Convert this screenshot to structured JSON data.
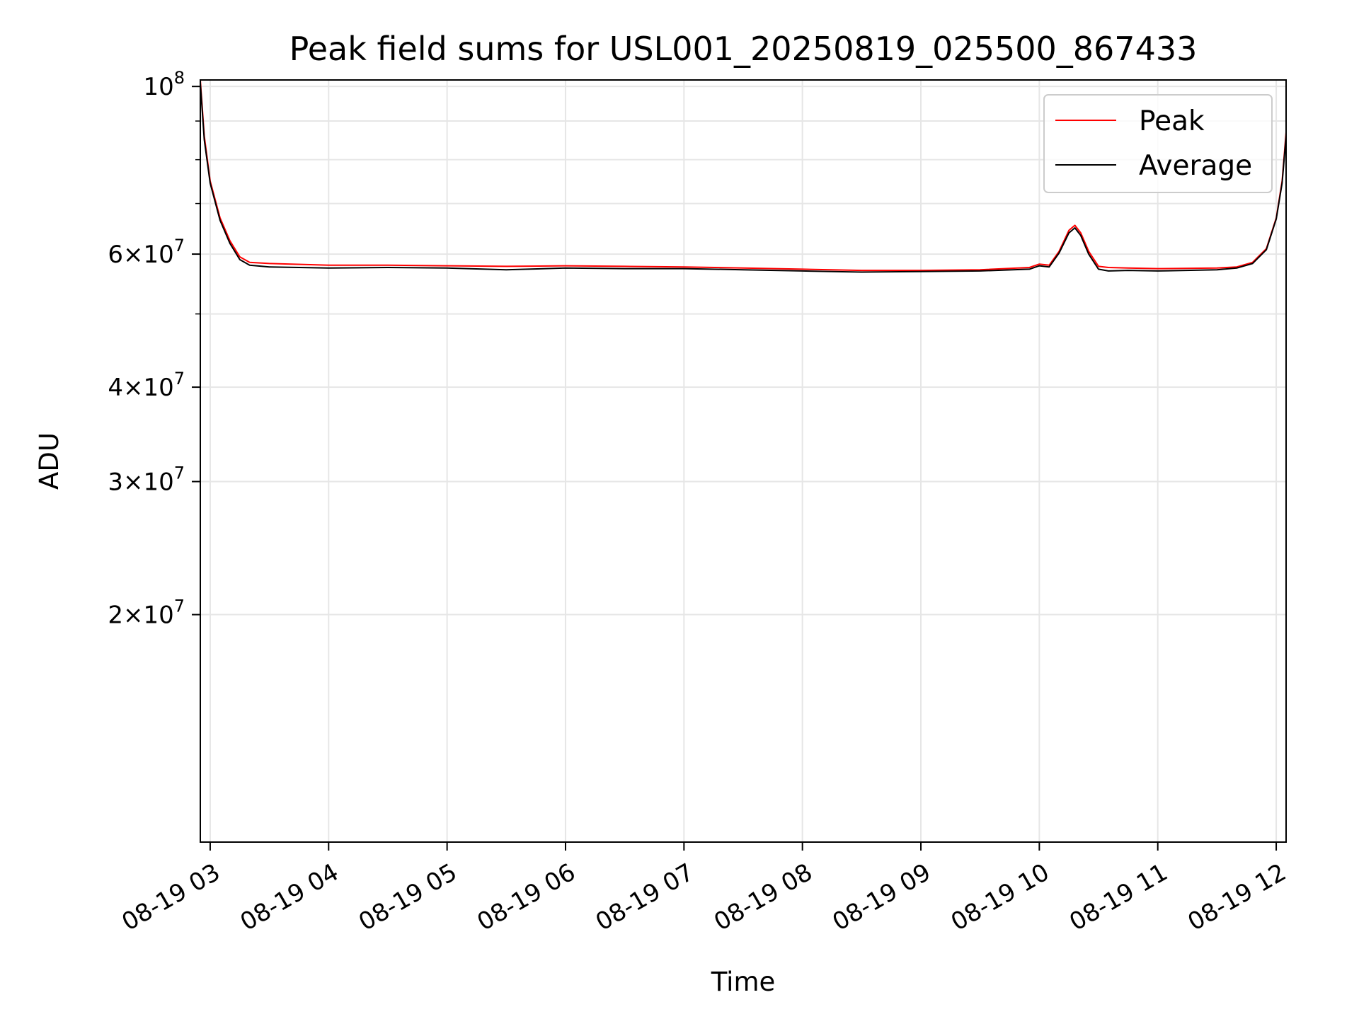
{
  "chart_data": {
    "type": "line",
    "title": "Peak field sums for USL001_20250819_025500_867433",
    "xlabel": "Time",
    "ylabel": "ADU",
    "yscale": "log",
    "ylim": [
      10000000,
      102000000
    ],
    "xlim": [
      "2025-08-19 02:55",
      "2025-08-19 12:05"
    ],
    "grid": true,
    "legend": {
      "position": "top-right"
    },
    "x_ticks": [
      {
        "t": "2025-08-19 03:00",
        "label": "08-19 03"
      },
      {
        "t": "2025-08-19 04:00",
        "label": "08-19 04"
      },
      {
        "t": "2025-08-19 05:00",
        "label": "08-19 05"
      },
      {
        "t": "2025-08-19 06:00",
        "label": "08-19 06"
      },
      {
        "t": "2025-08-19 07:00",
        "label": "08-19 07"
      },
      {
        "t": "2025-08-19 08:00",
        "label": "08-19 08"
      },
      {
        "t": "2025-08-19 09:00",
        "label": "08-19 09"
      },
      {
        "t": "2025-08-19 10:00",
        "label": "08-19 10"
      },
      {
        "t": "2025-08-19 11:00",
        "label": "08-19 11"
      },
      {
        "t": "2025-08-19 12:00",
        "label": "08-19 12"
      }
    ],
    "y_ticks": [
      {
        "value": 20000000,
        "mant": "2",
        "exp": "7"
      },
      {
        "value": 30000000,
        "mant": "3",
        "exp": "7"
      },
      {
        "value": 40000000,
        "mant": "4",
        "exp": "7"
      },
      {
        "value": 60000000,
        "mant": "6",
        "exp": "7"
      },
      {
        "value": 100000000,
        "mant": "",
        "exp": "8"
      }
    ],
    "y_minor_ticks": [
      50000000,
      70000000,
      80000000,
      90000000
    ],
    "series": [
      {
        "name": "Peak",
        "color": "#ff0000",
        "x": [
          "2025-08-19 02:55",
          "2025-08-19 02:57",
          "2025-08-19 03:00",
          "2025-08-19 03:05",
          "2025-08-19 03:10",
          "2025-08-19 03:15",
          "2025-08-19 03:20",
          "2025-08-19 03:30",
          "2025-08-19 04:00",
          "2025-08-19 04:30",
          "2025-08-19 05:00",
          "2025-08-19 05:30",
          "2025-08-19 06:00",
          "2025-08-19 06:30",
          "2025-08-19 07:00",
          "2025-08-19 07:30",
          "2025-08-19 08:00",
          "2025-08-19 08:30",
          "2025-08-19 09:00",
          "2025-08-19 09:30",
          "2025-08-19 09:55",
          "2025-08-19 10:00",
          "2025-08-19 10:05",
          "2025-08-19 10:10",
          "2025-08-19 10:15",
          "2025-08-19 10:18",
          "2025-08-19 10:21",
          "2025-08-19 10:25",
          "2025-08-19 10:30",
          "2025-08-19 10:35",
          "2025-08-19 10:45",
          "2025-08-19 11:00",
          "2025-08-19 11:30",
          "2025-08-19 11:40",
          "2025-08-19 11:48",
          "2025-08-19 11:55",
          "2025-08-19 12:00",
          "2025-08-19 12:03",
          "2025-08-19 12:05"
        ],
        "y": [
          102000000,
          86000000,
          75000000,
          67000000,
          62500000,
          59500000,
          58500000,
          58300000,
          58000000,
          58000000,
          57900000,
          57800000,
          57900000,
          57800000,
          57700000,
          57500000,
          57300000,
          57100000,
          57100000,
          57200000,
          57600000,
          58200000,
          58000000,
          60500000,
          64500000,
          65500000,
          64000000,
          60500000,
          57800000,
          57600000,
          57500000,
          57400000,
          57500000,
          57700000,
          58500000,
          61000000,
          67000000,
          75000000,
          87000000
        ]
      },
      {
        "name": "Average",
        "color": "#000000",
        "x": [
          "2025-08-19 02:55",
          "2025-08-19 02:57",
          "2025-08-19 03:00",
          "2025-08-19 03:05",
          "2025-08-19 03:10",
          "2025-08-19 03:15",
          "2025-08-19 03:20",
          "2025-08-19 03:30",
          "2025-08-19 04:00",
          "2025-08-19 04:30",
          "2025-08-19 05:00",
          "2025-08-19 05:30",
          "2025-08-19 06:00",
          "2025-08-19 06:30",
          "2025-08-19 07:00",
          "2025-08-19 07:30",
          "2025-08-19 08:00",
          "2025-08-19 08:30",
          "2025-08-19 09:00",
          "2025-08-19 09:30",
          "2025-08-19 09:55",
          "2025-08-19 10:00",
          "2025-08-19 10:05",
          "2025-08-19 10:10",
          "2025-08-19 10:15",
          "2025-08-19 10:18",
          "2025-08-19 10:21",
          "2025-08-19 10:25",
          "2025-08-19 10:30",
          "2025-08-19 10:35",
          "2025-08-19 10:45",
          "2025-08-19 11:00",
          "2025-08-19 11:30",
          "2025-08-19 11:40",
          "2025-08-19 11:48",
          "2025-08-19 11:55",
          "2025-08-19 12:00",
          "2025-08-19 12:03",
          "2025-08-19 12:05"
        ],
        "y": [
          101000000,
          85000000,
          74500000,
          66500000,
          62000000,
          59000000,
          58000000,
          57700000,
          57500000,
          57600000,
          57500000,
          57200000,
          57500000,
          57400000,
          57400000,
          57200000,
          57000000,
          56800000,
          56900000,
          57000000,
          57300000,
          57900000,
          57700000,
          60200000,
          64000000,
          65000000,
          63500000,
          60000000,
          57300000,
          57000000,
          57100000,
          57000000,
          57200000,
          57500000,
          58300000,
          60800000,
          66800000,
          74500000,
          86000000
        ]
      }
    ]
  }
}
